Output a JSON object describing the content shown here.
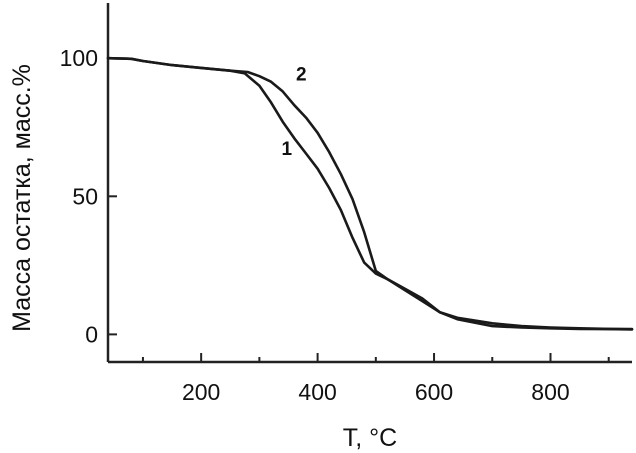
{
  "chart_data": {
    "type": "line",
    "xlabel": "T, °C",
    "ylabel": "Масса остатка, масс.%",
    "xlim": [
      40,
      940
    ],
    "ylim": [
      -10,
      120
    ],
    "xticks": [
      200,
      400,
      600,
      800
    ],
    "xticks_minor": [
      100,
      300,
      500,
      700,
      900
    ],
    "yticks": [
      0,
      50,
      100
    ],
    "grid": false,
    "series": [
      {
        "name": "1",
        "x": [
          40,
          80,
          100,
          150,
          200,
          250,
          275,
          300,
          320,
          340,
          360,
          380,
          400,
          420,
          440,
          460,
          480,
          500,
          520,
          550,
          580,
          610,
          640,
          700,
          750,
          800,
          850,
          900,
          940
        ],
        "y": [
          100,
          99.8,
          99,
          97.5,
          96.5,
          95.5,
          94.5,
          90,
          84,
          77,
          71,
          65.5,
          60,
          53,
          45,
          35,
          26,
          22,
          20,
          16,
          12,
          8,
          6,
          4,
          3,
          2.5,
          2.2,
          2,
          1.9
        ]
      },
      {
        "name": "2",
        "x": [
          40,
          80,
          100,
          150,
          200,
          250,
          280,
          300,
          320,
          340,
          360,
          380,
          400,
          420,
          440,
          460,
          480,
          500,
          520,
          550,
          580,
          610,
          640,
          700,
          750,
          800,
          850,
          900,
          940
        ],
        "y": [
          100,
          99.8,
          99,
          97.5,
          96.5,
          95.5,
          95,
          93.5,
          91.5,
          88,
          83,
          78.5,
          73,
          66,
          58,
          49,
          37,
          23,
          20,
          16.5,
          13,
          8,
          5.5,
          3,
          2.5,
          2.2,
          2,
          1.9,
          1.8
        ]
      }
    ],
    "annotations": [
      {
        "text": "1",
        "x": 347,
        "y": 65
      },
      {
        "text": "2",
        "x": 372,
        "y": 92
      }
    ]
  }
}
